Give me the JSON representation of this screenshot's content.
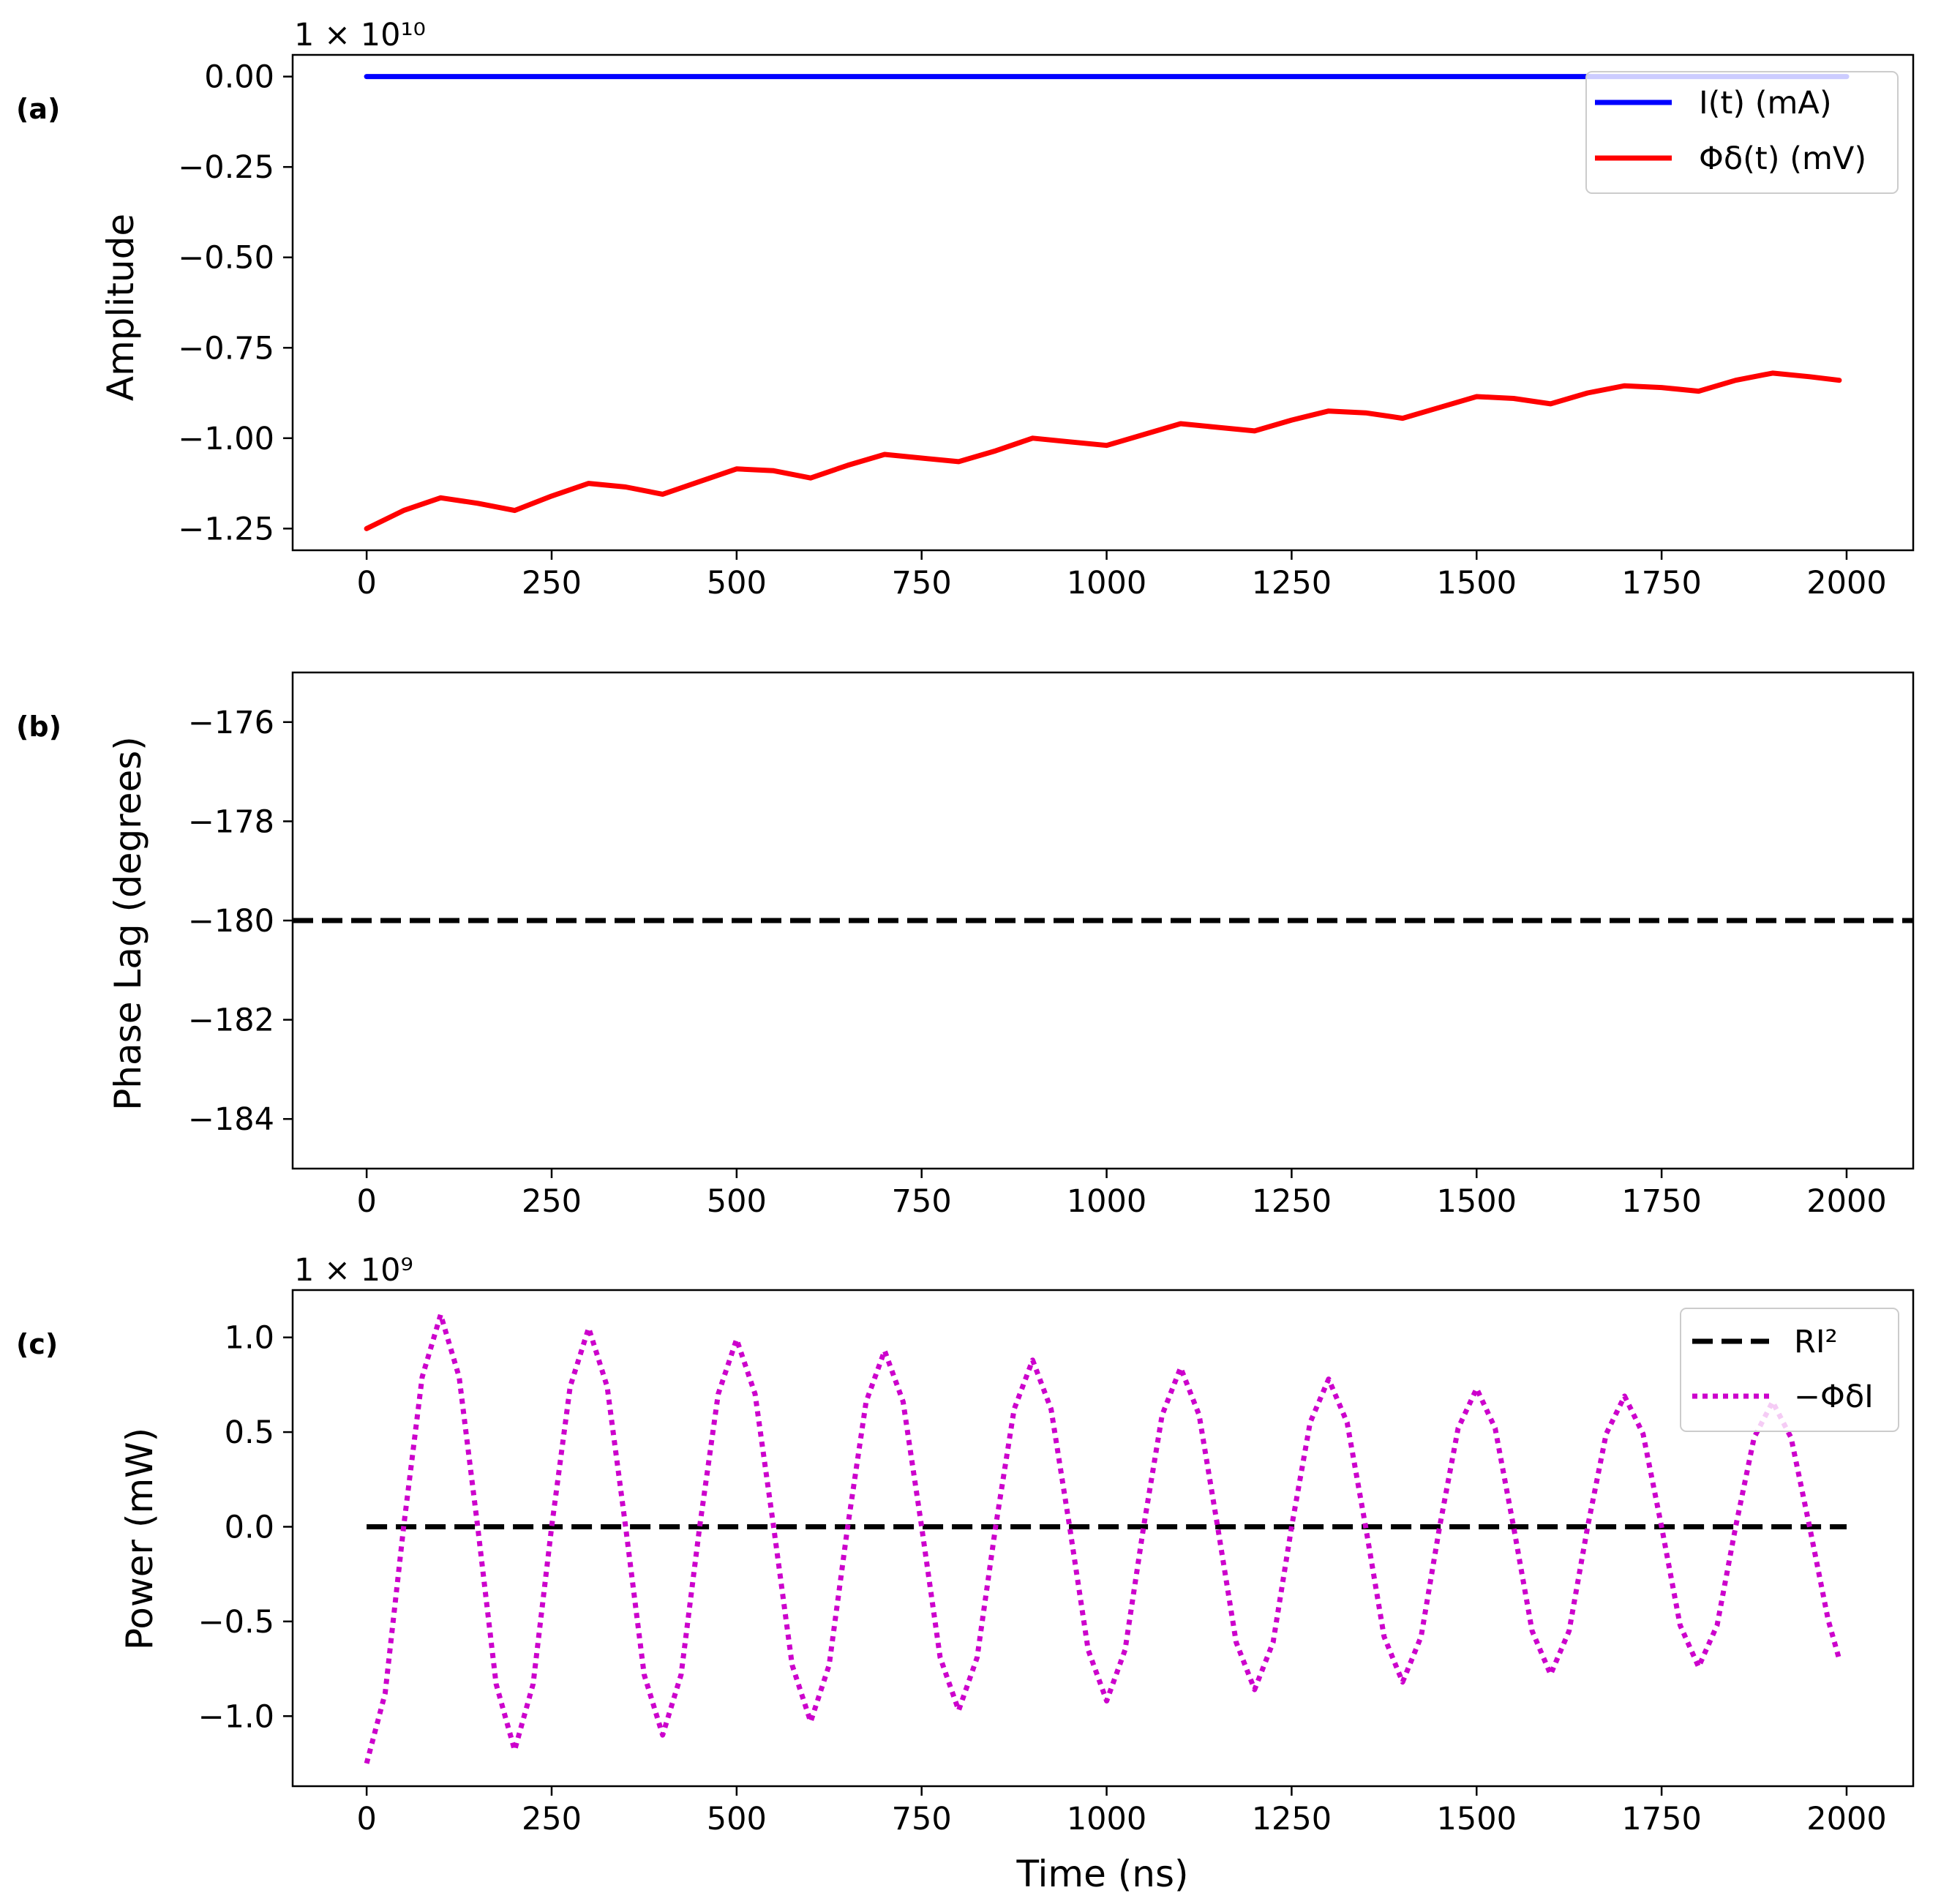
{
  "chart_data": [
    {
      "panel": "(a)",
      "type": "line",
      "ylabel": "Amplitude",
      "offset_text": "1 × 10¹⁰",
      "xlim": [
        -100,
        2090
      ],
      "ylim": [
        -1.31,
        0.06
      ],
      "xticks": [
        0,
        250,
        500,
        750,
        1000,
        1250,
        1500,
        1750,
        2000
      ],
      "xtick_labels": [
        "0",
        "250",
        "500",
        "750",
        "1000",
        "1250",
        "1500",
        "1750",
        "2000"
      ],
      "yticks": [
        0.0,
        -0.25,
        -0.5,
        -0.75,
        -1.0,
        -1.25
      ],
      "ytick_labels": [
        "0.00",
        "−0.25",
        "−0.50",
        "−0.75",
        "−1.00",
        "−1.25"
      ],
      "legend": "top-right",
      "series": [
        {
          "name": "I(t) (mA)",
          "color": "#0000ff",
          "style": "solid",
          "x": [
            0,
            2000
          ],
          "y": [
            0.0,
            0.0
          ]
        },
        {
          "name": "Φδ(t) (mV)",
          "color": "#ff0000",
          "style": "solid",
          "x": [
            0,
            50,
            100,
            150,
            200,
            250,
            300,
            350,
            400,
            450,
            500,
            550,
            600,
            650,
            700,
            750,
            800,
            850,
            900,
            950,
            1000,
            1050,
            1100,
            1150,
            1200,
            1250,
            1300,
            1350,
            1400,
            1450,
            1500,
            1550,
            1600,
            1650,
            1700,
            1750,
            1800,
            1850,
            1900,
            1950,
            1990
          ],
          "y": [
            -1.25,
            -1.2,
            -1.165,
            -1.18,
            -1.2,
            -1.16,
            -1.125,
            -1.135,
            -1.155,
            -1.12,
            -1.085,
            -1.09,
            -1.11,
            -1.075,
            -1.045,
            -1.055,
            -1.065,
            -1.035,
            -1.0,
            -1.01,
            -1.02,
            -0.99,
            -0.96,
            -0.97,
            -0.98,
            -0.95,
            -0.925,
            -0.93,
            -0.945,
            -0.915,
            -0.885,
            -0.89,
            -0.905,
            -0.875,
            -0.855,
            -0.86,
            -0.87,
            -0.84,
            -0.82,
            -0.83,
            -0.84
          ]
        }
      ]
    },
    {
      "panel": "(b)",
      "type": "line",
      "ylabel": "Phase Lag (degrees)",
      "xlim": [
        -100,
        2090
      ],
      "ylim": [
        -185,
        -175
      ],
      "xticks": [
        0,
        250,
        500,
        750,
        1000,
        1250,
        1500,
        1750,
        2000
      ],
      "xtick_labels": [
        "0",
        "250",
        "500",
        "750",
        "1000",
        "1250",
        "1500",
        "1750",
        "2000"
      ],
      "yticks": [
        -176,
        -178,
        -180,
        -182,
        -184
      ],
      "ytick_labels": [
        "−176",
        "−178",
        "−180",
        "−182",
        "−184"
      ],
      "series": [
        {
          "name": "phase lag",
          "color": "#000000",
          "style": "dashed",
          "x": [
            -100,
            2090
          ],
          "y": [
            -180,
            -180
          ]
        }
      ]
    },
    {
      "panel": "(c)",
      "type": "line",
      "ylabel": "Power (mW)",
      "xlabel": "Time (ns)",
      "offset_text": "1 × 10⁹",
      "xlim": [
        -100,
        2090
      ],
      "ylim": [
        -1.37,
        1.25
      ],
      "xticks": [
        0,
        250,
        500,
        750,
        1000,
        1250,
        1500,
        1750,
        2000
      ],
      "xtick_labels": [
        "0",
        "250",
        "500",
        "750",
        "1000",
        "1250",
        "1500",
        "1750",
        "2000"
      ],
      "yticks": [
        1.0,
        0.5,
        0.0,
        -0.5,
        -1.0
      ],
      "ytick_labels": [
        "1.0",
        "0.5",
        "0.0",
        "−0.5",
        "−1.0"
      ],
      "legend": "top-right",
      "series": [
        {
          "name": "RI²",
          "color": "#000000",
          "style": "dashed",
          "x": [
            0,
            2000
          ],
          "y": [
            0.0,
            0.0
          ]
        },
        {
          "name": "−ΦδI",
          "color": "#cc00cc",
          "style": "dotted",
          "x": [
            0,
            25,
            50,
            75,
            100,
            125,
            150,
            175,
            200,
            225,
            250,
            275,
            300,
            325,
            350,
            375,
            400,
            425,
            450,
            475,
            500,
            525,
            550,
            575,
            600,
            625,
            650,
            675,
            700,
            725,
            750,
            775,
            800,
            825,
            850,
            875,
            900,
            925,
            950,
            975,
            1000,
            1025,
            1050,
            1075,
            1100,
            1125,
            1150,
            1175,
            1200,
            1225,
            1250,
            1275,
            1300,
            1325,
            1350,
            1375,
            1400,
            1425,
            1450,
            1475,
            1500,
            1525,
            1550,
            1575,
            1600,
            1625,
            1650,
            1675,
            1700,
            1725,
            1750,
            1775,
            1800,
            1825,
            1850,
            1875,
            1900,
            1925,
            1950,
            1975,
            1990
          ],
          "y": [
            -1.25,
            -0.88,
            0.0,
            0.79,
            1.12,
            0.79,
            0.0,
            -0.83,
            -1.18,
            -0.83,
            0.0,
            0.74,
            1.05,
            0.74,
            0.0,
            -0.78,
            -1.1,
            -0.78,
            0.0,
            0.7,
            0.99,
            0.7,
            0.0,
            -0.73,
            -1.03,
            -0.73,
            0.0,
            0.66,
            0.93,
            0.66,
            0.0,
            -0.69,
            -0.97,
            -0.69,
            0.0,
            0.62,
            0.88,
            0.62,
            0.0,
            -0.65,
            -0.92,
            -0.65,
            0.0,
            0.59,
            0.84,
            0.59,
            0.0,
            -0.61,
            -0.86,
            -0.61,
            0.0,
            0.55,
            0.78,
            0.55,
            0.0,
            -0.58,
            -0.82,
            -0.58,
            0.0,
            0.52,
            0.73,
            0.52,
            0.0,
            -0.55,
            -0.78,
            -0.55,
            0.0,
            0.49,
            0.69,
            0.49,
            0.0,
            -0.52,
            -0.74,
            -0.52,
            0.0,
            0.47,
            0.66,
            0.47,
            0.0,
            -0.49,
            -0.7
          ]
        }
      ]
    }
  ]
}
